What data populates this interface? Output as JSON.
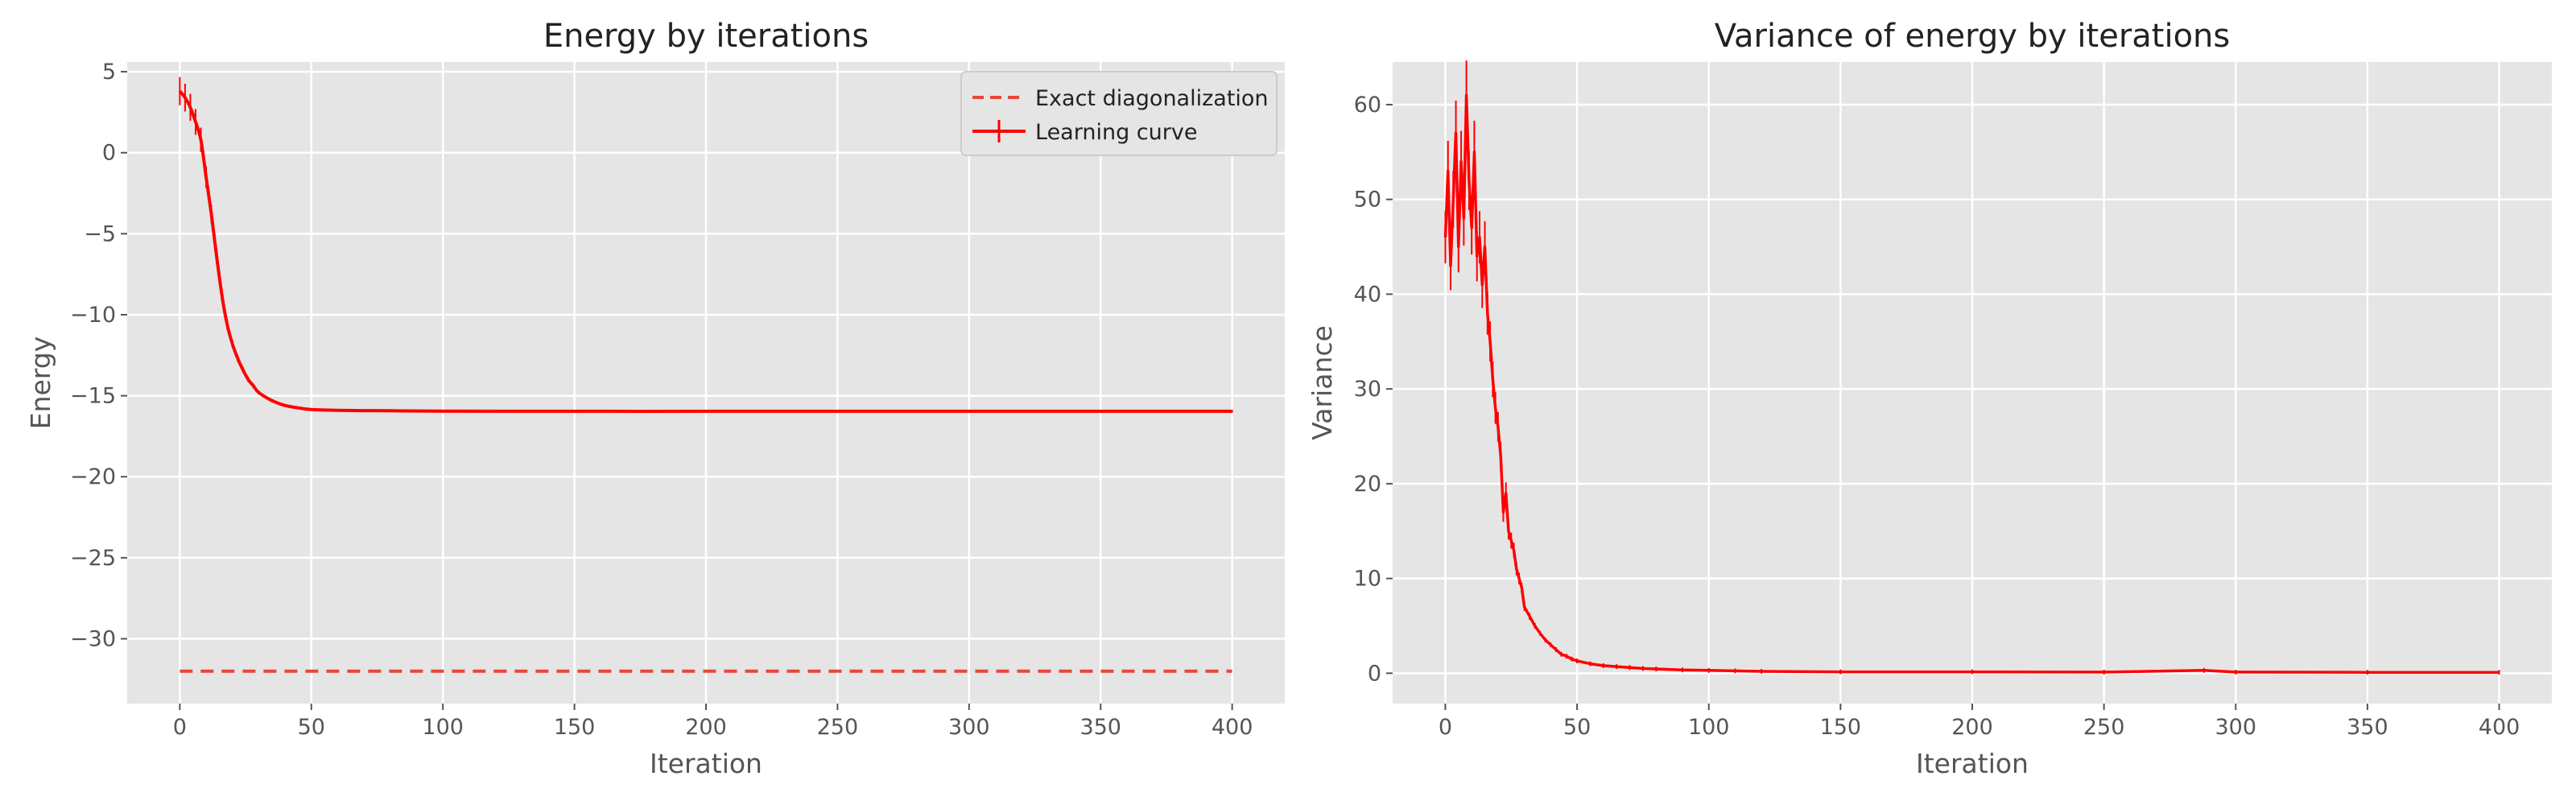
{
  "chart_data": [
    {
      "type": "line",
      "title": "Energy by iterations",
      "xlabel": "Iteration",
      "ylabel": "Energy",
      "xlim": [
        -20,
        420
      ],
      "ylim": [
        -34,
        5.6
      ],
      "xticks": [
        0,
        50,
        100,
        150,
        200,
        250,
        300,
        350,
        400
      ],
      "yticks": [
        5,
        0,
        -5,
        -10,
        -15,
        -20,
        -25,
        -30
      ],
      "grid": true,
      "legend": {
        "position": "top-right",
        "entries": [
          "Exact diagonalization",
          "Learning curve"
        ]
      },
      "series": [
        {
          "name": "Exact diagonalization",
          "style": "dashed",
          "color": "#e8463a",
          "x": [
            0,
            400
          ],
          "y": [
            -32.0,
            -32.0
          ]
        },
        {
          "name": "Learning curve",
          "style": "solid-errorbar",
          "color": "#ff0000",
          "x": [
            0,
            2,
            4,
            6,
            8,
            10,
            12,
            14,
            16,
            18,
            20,
            22,
            24,
            26,
            28,
            30,
            35,
            40,
            45,
            50,
            60,
            70,
            80,
            100,
            150,
            200,
            250,
            300,
            350,
            400
          ],
          "y": [
            3.8,
            3.4,
            2.8,
            1.9,
            0.8,
            -1.5,
            -3.8,
            -6.4,
            -8.8,
            -10.6,
            -11.8,
            -12.7,
            -13.4,
            -14.0,
            -14.4,
            -14.8,
            -15.3,
            -15.6,
            -15.75,
            -15.85,
            -15.9,
            -15.92,
            -15.93,
            -15.95,
            -15.96,
            -15.96,
            -15.96,
            -15.96,
            -15.96,
            -15.96
          ]
        }
      ]
    },
    {
      "type": "line",
      "title": "Variance of energy by iterations",
      "xlabel": "Iteration",
      "ylabel": "Variance",
      "xlim": [
        -20,
        420
      ],
      "ylim": [
        -3.2,
        64.5
      ],
      "xticks": [
        0,
        50,
        100,
        150,
        200,
        250,
        300,
        350,
        400
      ],
      "yticks": [
        60,
        50,
        40,
        30,
        20,
        10,
        0
      ],
      "grid": true,
      "series": [
        {
          "color": "#ff0000",
          "style": "solid-errorbar",
          "x": [
            0,
            1,
            2,
            3,
            4,
            5,
            6,
            7,
            8,
            9,
            10,
            11,
            12,
            13,
            14,
            15,
            16,
            17,
            18,
            19,
            20,
            21,
            22,
            23,
            24,
            25,
            26,
            27,
            28,
            29,
            30,
            32,
            34,
            36,
            38,
            40,
            42,
            44,
            46,
            48,
            50,
            55,
            60,
            65,
            70,
            75,
            80,
            90,
            100,
            110,
            120,
            150,
            200,
            250,
            288,
            300,
            350,
            400
          ],
          "y": [
            46,
            53,
            43,
            50,
            57,
            45,
            54,
            48,
            61,
            52,
            47,
            55,
            44,
            46,
            41,
            45,
            38,
            35,
            31,
            28,
            26,
            23,
            17,
            19,
            15,
            14,
            13,
            11,
            10,
            9,
            7,
            6,
            5,
            4.2,
            3.5,
            3.0,
            2.5,
            2.0,
            1.8,
            1.5,
            1.3,
            1.0,
            0.8,
            0.7,
            0.6,
            0.5,
            0.45,
            0.35,
            0.3,
            0.25,
            0.2,
            0.15,
            0.15,
            0.12,
            0.3,
            0.12,
            0.1,
            0.1
          ]
        }
      ]
    }
  ]
}
